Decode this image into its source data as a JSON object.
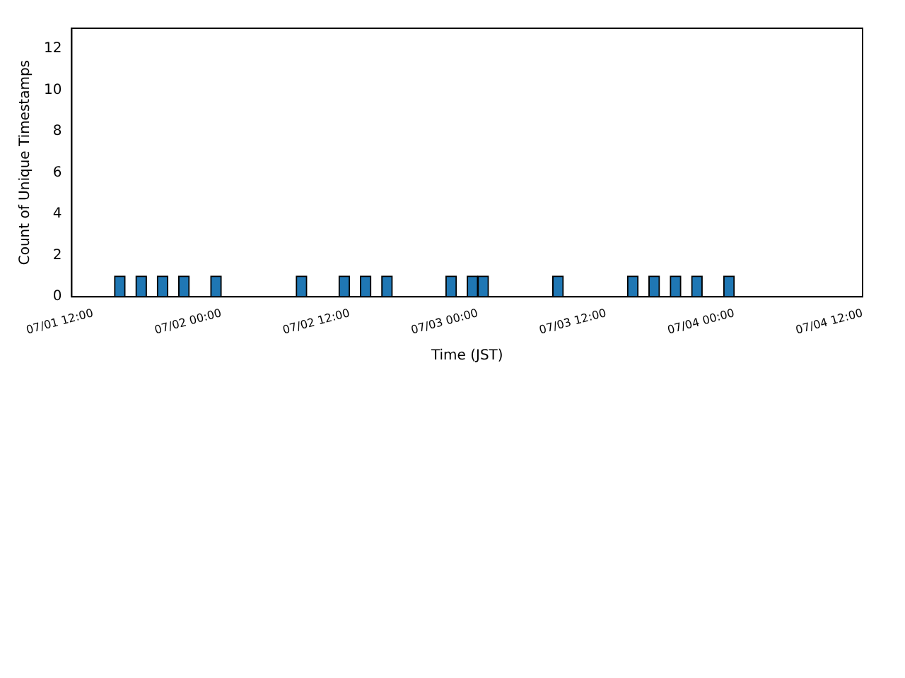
{
  "chart_data": {
    "type": "histogram",
    "xlabel": "Time (JST)",
    "ylabel": "Count of Unique Timestamps",
    "color": "#1f77b4",
    "bins": [
      "--07-01T11:00",
      "--07-01T12:00",
      "--07-01T13:00",
      "--07-01T14:00",
      "--07-01T15:00",
      "--07-01T16:00",
      "--07-01T17:00",
      "--07-01T18:00",
      "--07-01T19:00",
      "--07-01T20:00",
      "--07-01T21:00",
      "--07-01T22:00",
      "--07-01T23:00",
      "--07-02T00:00",
      "--07-02T01:00",
      "--07-02T02:00",
      "--07-02T03:00",
      "--07-02T04:00",
      "--07-02T05:00",
      "--07-02T06:00",
      "--07-02T07:00",
      "--07-02T08:00",
      "--07-02T09:00",
      "--07-02T10:00",
      "--07-02T11:00",
      "--07-02T12:00",
      "--07-02T13:00",
      "--07-02T14:00",
      "--07-02T15:00",
      "--07-02T16:00",
      "--07-02T17:00",
      "--07-02T18:00",
      "--07-02T19:00",
      "--07-02T20:00",
      "--07-02T21:00",
      "--07-02T22:00",
      "--07-02T23:00",
      "--07-03T00:00",
      "--07-03T01:00",
      "--07-03T02:00",
      "--07-03T03:00",
      "--07-03T04:00",
      "--07-03T05:00",
      "--07-03T06:00",
      "--07-03T07:00",
      "--07-03T08:00",
      "--07-03T09:00",
      "--07-03T10:00",
      "--07-03T11:00",
      "--07-03T12:00",
      "--07-03T13:00",
      "--07-03T14:00",
      "--07-03T15:00",
      "--07-03T16:00",
      "--07-03T17:00",
      "--07-03T18:00",
      "--07-03T19:00",
      "--07-03T20:00",
      "--07-03T21:00",
      "--07-03T22:00",
      "--07-03T23:00",
      "--07-04T00:00",
      "--07-04T01:00",
      "--07-04T02:00",
      "--07-04T03:00",
      "--07-04T04:00",
      "--07-04T05:00",
      "--07-04T06:00",
      "--07-04T07:00",
      "--07-04T08:00",
      "--07-04T09:00",
      "--07-04T10:00"
    ],
    "values": [
      0,
      0,
      0,
      1,
      0,
      1,
      0,
      1,
      0,
      1,
      0,
      0,
      1,
      0,
      0,
      0,
      0,
      0,
      0,
      0,
      1,
      0,
      0,
      0,
      1,
      0,
      1,
      0,
      1,
      0,
      0,
      0,
      0,
      0,
      1,
      0,
      1,
      1,
      0,
      0,
      0,
      0,
      0,
      0,
      1,
      0,
      0,
      0,
      0,
      0,
      0,
      1,
      0,
      1,
      0,
      1,
      0,
      1,
      0,
      0,
      1,
      0,
      0,
      0,
      0,
      0,
      0,
      0,
      0,
      0,
      0
    ],
    "xlim": [
      "--07-01T10:00",
      "--07-04T12:00"
    ],
    "xticks": [
      {
        "value": "--07-01T12:00",
        "label": "07/01 12:00"
      },
      {
        "value": "--07-02T00:00",
        "label": "07/02 00:00"
      },
      {
        "value": "--07-02T12:00",
        "label": "07/02 12:00"
      },
      {
        "value": "--07-03T00:00",
        "label": "07/03 00:00"
      },
      {
        "value": "--07-03T12:00",
        "label": "07/03 12:00"
      },
      {
        "value": "--07-04T00:00",
        "label": "07/04 00:00"
      },
      {
        "value": "--07-04T12:00",
        "label": "07/04 12:00"
      }
    ],
    "ylim": [
      0,
      13
    ],
    "yticks": [
      0,
      2,
      4,
      6,
      8,
      10,
      12
    ]
  }
}
